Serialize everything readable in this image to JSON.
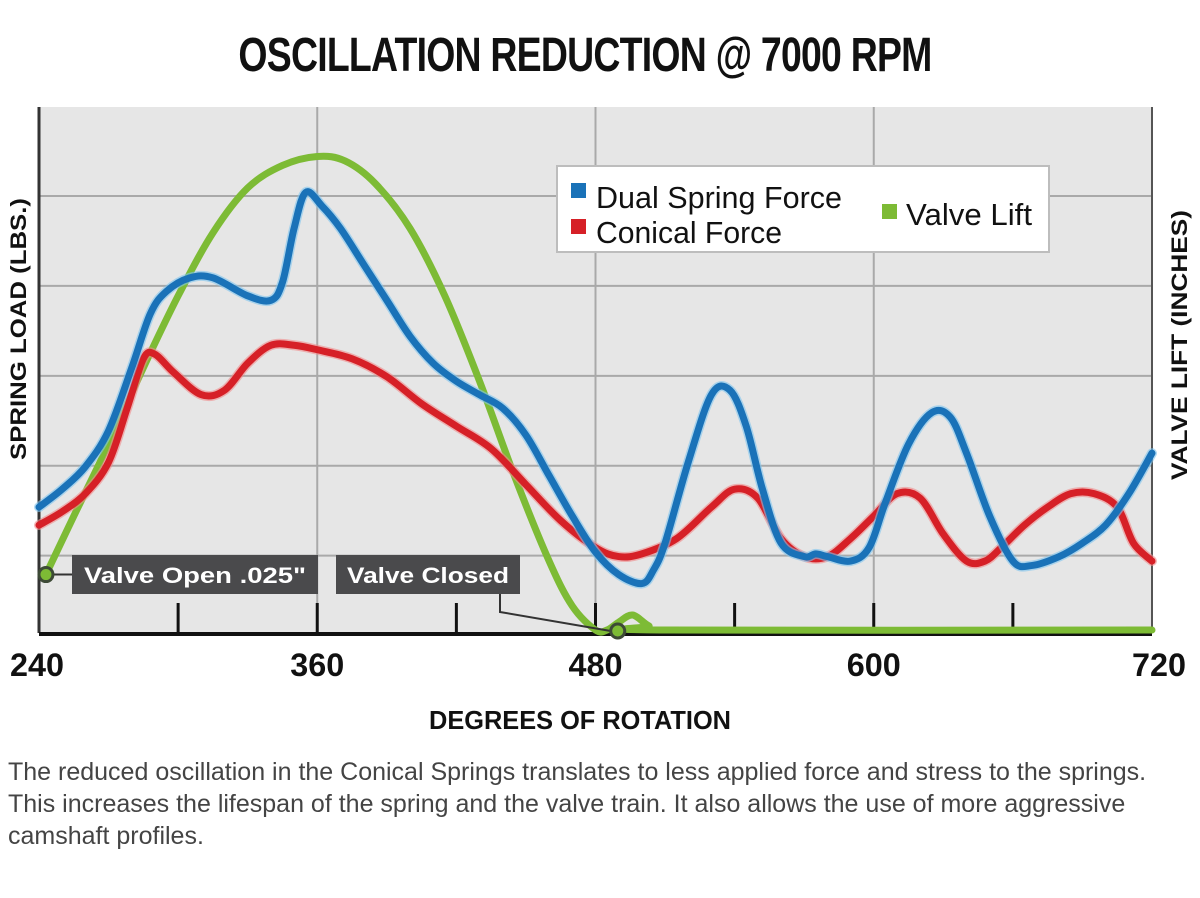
{
  "chart_data": {
    "type": "line",
    "title": "OSCILLATION REDUCTION @ 7000 RPM",
    "xlabel": "DEGREES OF ROTATION",
    "ylabel": "SPRING LOAD (LBS.)",
    "ylabel_right": "VALVE LIFT (INCHES)",
    "xlim": [
      240,
      720
    ],
    "ylim": [
      0,
      5.85
    ],
    "y_units_note": "relative grid units (no y tick labels shown)",
    "x_ticks": [
      240,
      360,
      480,
      600,
      720
    ],
    "x_minor_ticks": [
      300,
      420,
      540,
      660
    ],
    "y_gridlines": [
      0.86,
      1.86,
      2.86,
      3.86,
      4.86
    ],
    "grid": true,
    "legend": {
      "position": "top-right",
      "entries": [
        {
          "label": "Dual Spring Force",
          "color": "#1a72b8"
        },
        {
          "label": "Conical Force",
          "color": "#d62027"
        },
        {
          "label": "Valve Lift",
          "color": "#7dbb35"
        }
      ]
    },
    "series": [
      {
        "name": "Dual Spring Force",
        "color": "#1a72b8",
        "x": [
          240,
          250,
          260,
          270,
          280,
          288,
          295,
          305,
          315,
          330,
          340,
          345,
          350,
          355,
          362,
          370,
          380,
          390,
          400,
          410,
          420,
          430,
          440,
          450,
          460,
          470,
          480,
          490,
          500,
          505,
          510,
          520,
          530,
          538,
          545,
          552,
          560,
          570,
          575,
          580,
          590,
          598,
          605,
          615,
          625,
          633,
          640,
          650,
          660,
          668,
          680,
          690,
          700,
          710,
          720
        ],
        "y": [
          1.4,
          1.6,
          1.85,
          2.25,
          2.95,
          3.55,
          3.8,
          3.95,
          3.95,
          3.75,
          3.7,
          3.9,
          4.5,
          4.9,
          4.75,
          4.5,
          4.1,
          3.7,
          3.3,
          3.0,
          2.8,
          2.65,
          2.5,
          2.2,
          1.75,
          1.3,
          0.9,
          0.65,
          0.55,
          0.7,
          1.0,
          1.9,
          2.65,
          2.7,
          2.3,
          1.6,
          1.0,
          0.85,
          0.88,
          0.85,
          0.8,
          0.95,
          1.45,
          2.1,
          2.45,
          2.4,
          2.0,
          1.3,
          0.8,
          0.75,
          0.85,
          1.0,
          1.2,
          1.55,
          2.0
        ]
      },
      {
        "name": "Conical Force",
        "color": "#d62027",
        "x": [
          240,
          250,
          260,
          270,
          278,
          285,
          290,
          298,
          310,
          320,
          330,
          340,
          350,
          360,
          375,
          390,
          405,
          420,
          435,
          450,
          465,
          480,
          490,
          500,
          515,
          530,
          540,
          550,
          560,
          570,
          580,
          590,
          600,
          610,
          620,
          630,
          640,
          648,
          655,
          665,
          675,
          685,
          695,
          705,
          712,
          720
        ],
        "y": [
          1.2,
          1.35,
          1.55,
          1.9,
          2.5,
          3.05,
          3.1,
          2.9,
          2.65,
          2.7,
          3.0,
          3.2,
          3.2,
          3.15,
          3.05,
          2.85,
          2.55,
          2.3,
          2.05,
          1.65,
          1.25,
          0.95,
          0.85,
          0.88,
          1.05,
          1.4,
          1.6,
          1.5,
          1.05,
          0.85,
          0.85,
          1.05,
          1.3,
          1.55,
          1.5,
          1.1,
          0.8,
          0.8,
          0.95,
          1.2,
          1.4,
          1.55,
          1.55,
          1.4,
          1.0,
          0.8
        ]
      },
      {
        "name": "Valve Lift",
        "color": "#7dbb35",
        "x": [
          243,
          255,
          270,
          285,
          300,
          315,
          330,
          345,
          360,
          372,
          385,
          400,
          415,
          430,
          445,
          460,
          470,
          480,
          485,
          490,
          496,
          503,
          510,
          720
        ],
        "y": [
          0.65,
          1.3,
          2.1,
          2.95,
          3.75,
          4.45,
          4.95,
          5.2,
          5.3,
          5.25,
          5.0,
          4.5,
          3.75,
          2.8,
          1.75,
          0.8,
          0.3,
          0.02,
          0.0,
          0.12,
          0.2,
          0.08,
          0.0,
          0.0
        ]
      }
    ],
    "annotations": [
      {
        "label": "Valve Open .025\"",
        "x": 243,
        "y": 0.65
      },
      {
        "label": "Valve Closed",
        "x": 487,
        "y": 0.0
      }
    ]
  },
  "caption": "The reduced oscillation in the Conical Springs translates to less applied force and stress to the springs. This increases the lifespan of the spring and the valve train. It also allows the use of more aggressive camshaft profiles."
}
